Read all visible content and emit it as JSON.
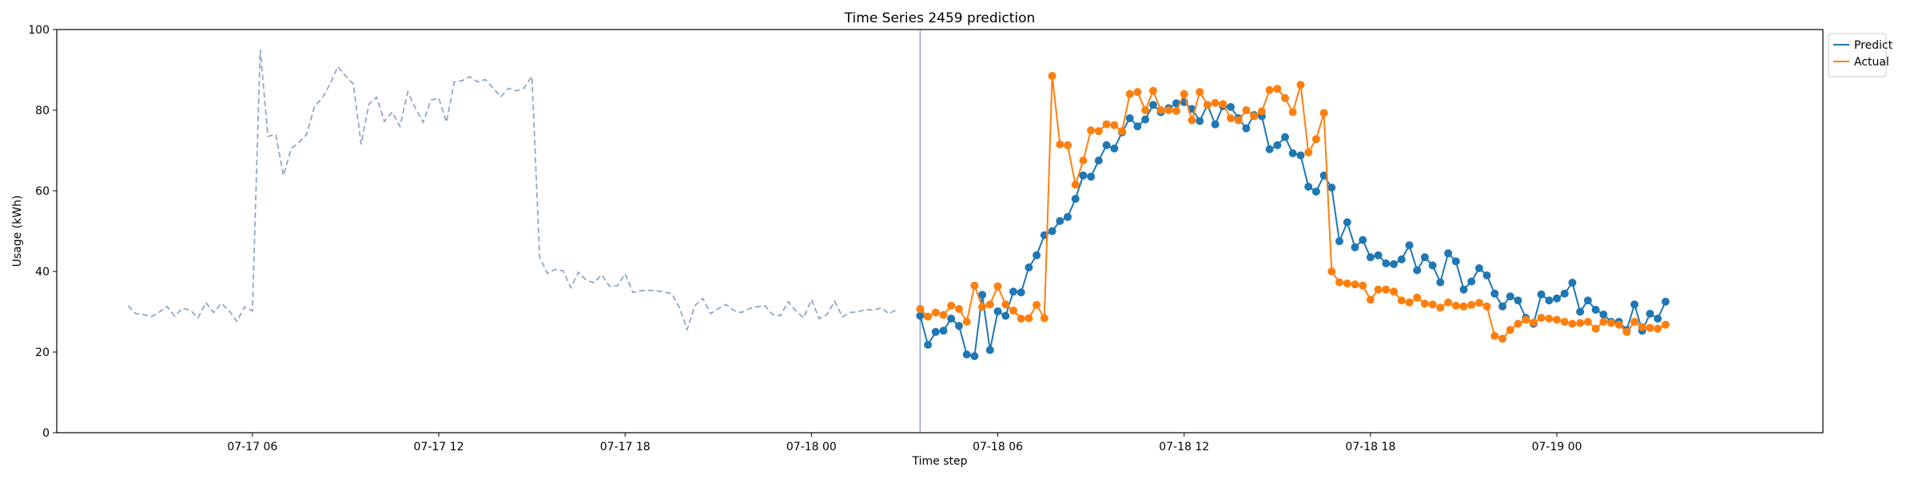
{
  "chart_data": {
    "type": "line",
    "title": "Time Series 2459 prediction",
    "xlabel": "Time step",
    "ylabel": "Usage (kWh)",
    "ylim": [
      0,
      100
    ],
    "yticks": [
      0,
      20,
      40,
      60,
      80,
      100
    ],
    "xlim": [
      "07-16 23:42",
      "07-19 08:34"
    ],
    "xticks": [
      {
        "t": "07-17 06:00",
        "label": "07-17 06"
      },
      {
        "t": "07-17 12:00",
        "label": "07-17 12"
      },
      {
        "t": "07-17 18:00",
        "label": "07-17 18"
      },
      {
        "t": "07-18 00:00",
        "label": "07-18 00"
      },
      {
        "t": "07-18 06:00",
        "label": "07-18 06"
      },
      {
        "t": "07-18 12:00",
        "label": "07-18 12"
      },
      {
        "t": "07-18 18:00",
        "label": "07-18 18"
      },
      {
        "t": "07-19 00:00",
        "label": "07-19 00"
      }
    ],
    "split_time": "07-18 03:30",
    "grid": false,
    "legend_position": "upper-right-outside",
    "series": [
      {
        "name": "",
        "style": "dashed",
        "color": "#8fa8c8",
        "start": "07-17 02:00",
        "step_minutes": 15,
        "values": [
          31.5,
          29.5,
          29.3,
          28.8,
          29.9,
          31.3,
          28.9,
          30.9,
          30.4,
          28.5,
          32.3,
          29.8,
          32.1,
          30.3,
          27.6,
          31.2,
          30.2,
          95,
          73.5,
          74,
          63.8,
          70.5,
          72,
          74,
          81,
          83,
          86.5,
          90.8,
          88.5,
          86.5,
          71.5,
          81.5,
          83.2,
          77.2,
          79.5,
          76,
          84.5,
          80.5,
          77,
          82.5,
          83,
          77,
          87,
          87.3,
          88.3,
          87,
          87.6,
          85.5,
          83.3,
          85.4,
          84.8,
          85.5,
          88.4,
          43.5,
          39.5,
          40.5,
          40.2,
          36,
          39.8,
          37.8,
          37.2,
          39.2,
          36.3,
          36.5,
          39.4,
          34.8,
          35.2,
          35.3,
          35.2,
          34.9,
          34.5,
          31,
          25.6,
          31.5,
          33.3,
          29.5,
          30.8,
          31.8,
          30.3,
          29.8,
          30.8,
          31.2,
          31.5,
          29.3,
          29,
          32.5,
          30.2,
          28.5,
          33,
          28.3,
          29.3,
          32.6,
          28.7,
          29.8,
          30,
          30.6,
          30.4,
          31,
          29.5,
          30.6
        ]
      },
      {
        "name": "Predict",
        "style": "solid-markers",
        "color": "#1f77b4",
        "start": "07-18 03:30",
        "step_minutes": 15,
        "values": [
          29,
          21.8,
          25,
          25.3,
          28.3,
          26.5,
          19.4,
          19,
          34.2,
          20.5,
          30.1,
          29,
          35,
          34.8,
          41,
          44,
          49,
          50,
          52.5,
          53.5,
          58,
          63.8,
          63.5,
          67.5,
          71.3,
          70.5,
          74.5,
          78,
          76,
          77.7,
          81.3,
          79.5,
          80.5,
          81.7,
          82,
          80.3,
          77.3,
          81.3,
          76.5,
          81,
          80.8,
          78,
          75.5,
          78.8,
          78.5,
          70.3,
          71.3,
          73.3,
          69.3,
          68.8,
          61,
          59.8,
          63.8,
          60.8,
          47.5,
          52.2,
          46,
          47.8,
          43.5,
          44,
          42,
          41.8,
          43,
          46.5,
          40.3,
          43.5,
          41.5,
          37.3,
          44.5,
          42.5,
          35.5,
          37.5,
          40.8,
          39,
          34.5,
          31.3,
          33.8,
          32.8,
          28.5,
          27,
          34.3,
          32.8,
          33.3,
          34.5,
          37.2,
          30,
          32.8,
          30.5,
          29.3,
          27.5,
          27.5,
          25.5,
          31.8,
          25.3,
          29.5,
          28.3,
          32.5
        ]
      },
      {
        "name": "Actual",
        "style": "solid-markers",
        "color": "#ff7f0e",
        "start": "07-18 03:30",
        "step_minutes": 15,
        "values": [
          30.7,
          28.8,
          29.8,
          29.2,
          31.5,
          30.7,
          27.5,
          36.5,
          31.2,
          31.8,
          36.3,
          31.8,
          30.3,
          28.3,
          28.4,
          31.7,
          28.4,
          88.5,
          71.5,
          71.3,
          61.5,
          67.5,
          75,
          74.8,
          76.5,
          76.3,
          74.8,
          84,
          84.5,
          80,
          84.8,
          80,
          80,
          79.8,
          84,
          77.5,
          84.5,
          81.3,
          81.8,
          81.5,
          78,
          77.5,
          80,
          78.5,
          79.7,
          85,
          85.3,
          83,
          79.5,
          86.3,
          69.5,
          72.8,
          79.3,
          40,
          37.3,
          37,
          36.8,
          36.5,
          33,
          35.5,
          35.5,
          35,
          32.8,
          32.3,
          33.5,
          32,
          31.8,
          31,
          32.3,
          31.5,
          31.3,
          31.7,
          32.2,
          31.3,
          24,
          23.3,
          25.5,
          27,
          28,
          27.3,
          28.5,
          28.3,
          28,
          27.5,
          27,
          27.2,
          27.5,
          25.8,
          27.5,
          27.2,
          26.8,
          25,
          27.5,
          26.2,
          26,
          25.8,
          26.8
        ]
      }
    ]
  }
}
